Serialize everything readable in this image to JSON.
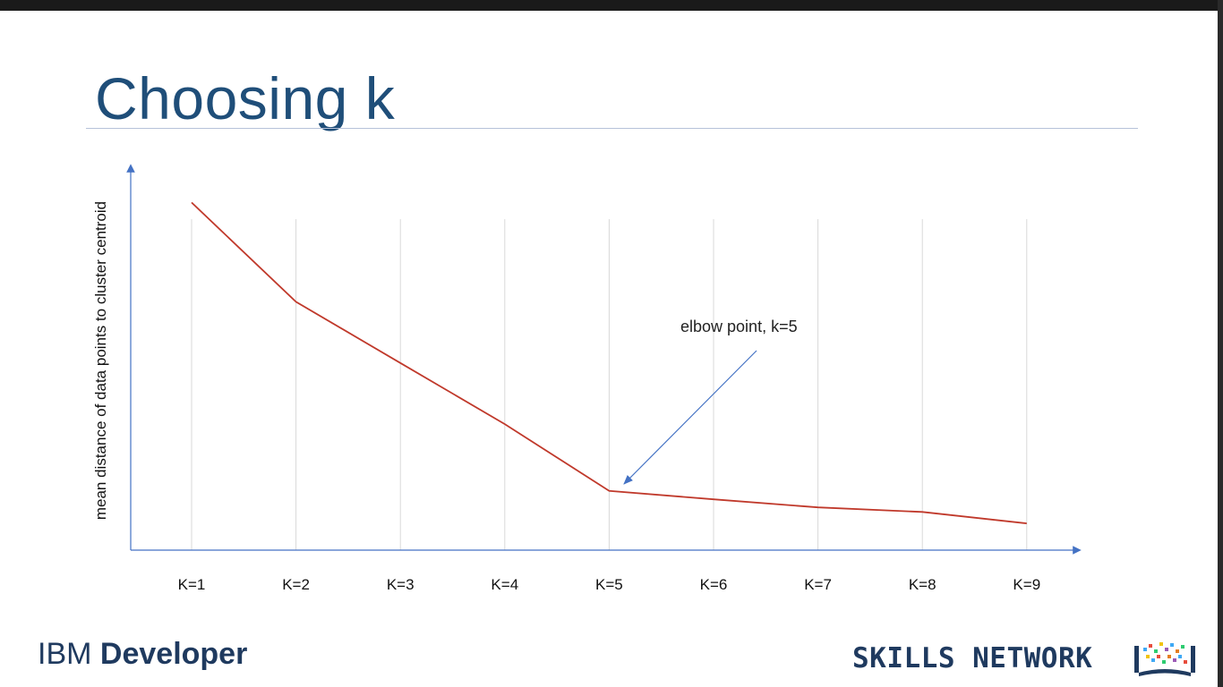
{
  "slide": {
    "title": "Choosing k"
  },
  "chart_data": {
    "type": "line",
    "categories": [
      "K=1",
      "K=2",
      "K=3",
      "K=4",
      "K=5",
      "K=6",
      "K=7",
      "K=8",
      "K=9"
    ],
    "values": [
      0.91,
      0.65,
      0.49,
      0.33,
      0.155,
      0.133,
      0.112,
      0.1,
      0.07
    ],
    "ylabel": "mean distance of data points to cluster centroid",
    "xlabel": "",
    "ylim": [
      0,
      1
    ],
    "grid": "vertical",
    "line_color": "#c0392b",
    "axis_color": "#4472c4",
    "annotation": {
      "text": "elbow point, k=5",
      "target_category": "K=5"
    }
  },
  "footer": {
    "brand_prefix": "IBM",
    "brand_suffix": "Developer",
    "network": "SKILLS NETWORK"
  },
  "colors": {
    "title": "#1f4e79",
    "footer": "#1f3a5f"
  }
}
